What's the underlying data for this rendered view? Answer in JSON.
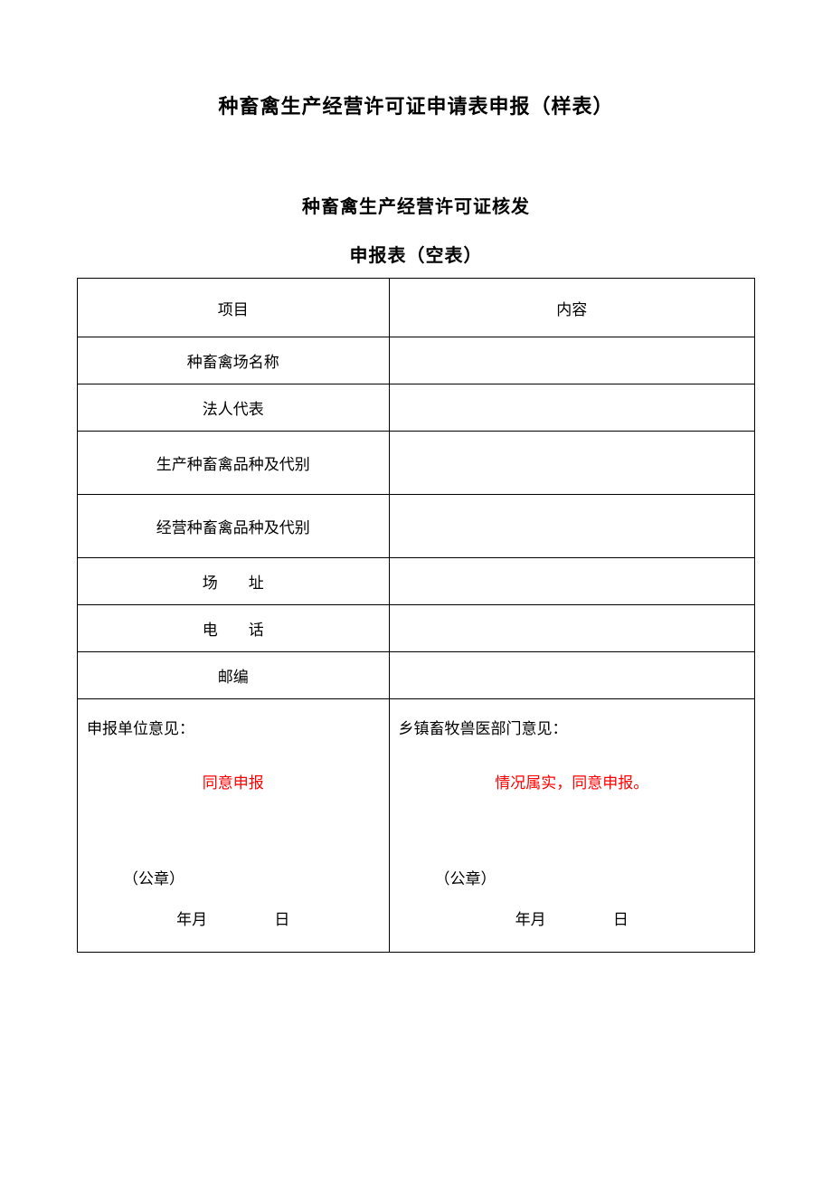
{
  "document": {
    "main_title": "种畜禽生产经营许可证申请表申报（样表）",
    "sub_title_1": "种畜禽生产经营许可证核发",
    "sub_title_2": "申报表（空表）"
  },
  "table": {
    "header": {
      "left": "项目",
      "right": "内容"
    },
    "rows": [
      {
        "label": "种畜禽场名称",
        "value": "",
        "tall": false,
        "spaced": false
      },
      {
        "label": "法人代表",
        "value": "",
        "tall": false,
        "spaced": false
      },
      {
        "label": "生产种畜禽品种及代别",
        "value": "",
        "tall": true,
        "spaced": false
      },
      {
        "label": "经营种畜禽品种及代别",
        "value": "",
        "tall": true,
        "spaced": false
      },
      {
        "label": "场　　址",
        "value": "",
        "tall": false,
        "spaced": false
      },
      {
        "label": "电　　话",
        "value": "",
        "tall": false,
        "spaced": false
      },
      {
        "label": "邮编",
        "value": "",
        "tall": false,
        "spaced": false
      }
    ],
    "signature": {
      "left": {
        "heading": "申报单位意见：",
        "red_text": "同意申报",
        "seal": "（公章）",
        "year_month": "年月",
        "day": "日"
      },
      "right": {
        "heading": "乡镇畜牧兽医部门意见：",
        "red_text": "情况属实，同意申报。",
        "seal": "（公章）",
        "year_month": "年月",
        "day": "日"
      }
    }
  },
  "colors": {
    "text": "#000000",
    "red": "#ff0000",
    "border": "#000000",
    "background": "#ffffff"
  }
}
